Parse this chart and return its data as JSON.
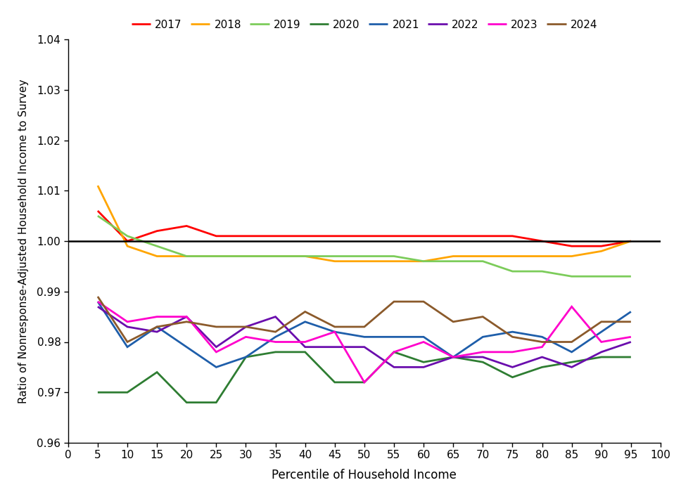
{
  "x": [
    5,
    10,
    15,
    20,
    25,
    30,
    35,
    40,
    45,
    50,
    55,
    60,
    65,
    70,
    75,
    80,
    85,
    90,
    95
  ],
  "series": {
    "2017": {
      "color": "#FF0000",
      "values": [
        1.006,
        1.0,
        1.002,
        1.003,
        1.001,
        1.001,
        1.001,
        1.001,
        1.001,
        1.001,
        1.001,
        1.001,
        1.001,
        1.001,
        1.001,
        1.0,
        0.999,
        0.999,
        1.0
      ]
    },
    "2018": {
      "color": "#FFA500",
      "values": [
        1.011,
        0.999,
        0.997,
        0.997,
        0.997,
        0.997,
        0.997,
        0.997,
        0.996,
        0.996,
        0.996,
        0.996,
        0.997,
        0.997,
        0.997,
        0.997,
        0.997,
        0.998,
        1.0
      ]
    },
    "2019": {
      "color": "#7CCC5A",
      "values": [
        1.005,
        1.001,
        0.999,
        0.997,
        0.997,
        0.997,
        0.997,
        0.997,
        0.997,
        0.997,
        0.997,
        0.996,
        0.996,
        0.996,
        0.994,
        0.994,
        0.993,
        0.993,
        0.993
      ]
    },
    "2020": {
      "color": "#2E7D32",
      "values": [
        0.97,
        0.97,
        0.974,
        0.968,
        0.968,
        0.977,
        0.978,
        0.978,
        0.972,
        0.972,
        0.978,
        0.976,
        0.977,
        0.976,
        0.973,
        0.975,
        0.976,
        0.977,
        0.977
      ]
    },
    "2021": {
      "color": "#1E5EAA",
      "values": [
        0.988,
        0.979,
        0.983,
        0.979,
        0.975,
        0.977,
        0.981,
        0.984,
        0.982,
        0.981,
        0.981,
        0.981,
        0.977,
        0.981,
        0.982,
        0.981,
        0.978,
        0.982,
        0.986
      ]
    },
    "2022": {
      "color": "#6A0DAD",
      "values": [
        0.987,
        0.983,
        0.982,
        0.985,
        0.979,
        0.983,
        0.985,
        0.979,
        0.979,
        0.979,
        0.975,
        0.975,
        0.977,
        0.977,
        0.975,
        0.977,
        0.975,
        0.978,
        0.98
      ]
    },
    "2023": {
      "color": "#FF00CC",
      "values": [
        0.988,
        0.984,
        0.985,
        0.985,
        0.978,
        0.981,
        0.98,
        0.98,
        0.982,
        0.972,
        0.978,
        0.98,
        0.977,
        0.978,
        0.978,
        0.979,
        0.987,
        0.98,
        0.981
      ]
    },
    "2024": {
      "color": "#8B5A2B",
      "values": [
        0.989,
        0.98,
        0.983,
        0.984,
        0.983,
        0.983,
        0.982,
        0.986,
        0.983,
        0.983,
        0.988,
        0.988,
        0.984,
        0.985,
        0.981,
        0.98,
        0.98,
        0.984,
        0.984
      ]
    }
  },
  "xlim": [
    0,
    100
  ],
  "ylim": [
    0.96,
    1.04
  ],
  "yticks": [
    0.96,
    0.97,
    0.98,
    0.99,
    1.0,
    1.01,
    1.02,
    1.03,
    1.04
  ],
  "xticks": [
    0,
    5,
    10,
    15,
    20,
    25,
    30,
    35,
    40,
    45,
    50,
    55,
    60,
    65,
    70,
    75,
    80,
    85,
    90,
    95,
    100
  ],
  "xlabel": "Percentile of Household Income",
  "ylabel": "Ratio of Nonresponse-Adjusted Household Income to Survey",
  "reference_line": 1.0,
  "linewidth": 2.0,
  "legend_order": [
    "2017",
    "2018",
    "2019",
    "2020",
    "2021",
    "2022",
    "2023",
    "2024"
  ]
}
